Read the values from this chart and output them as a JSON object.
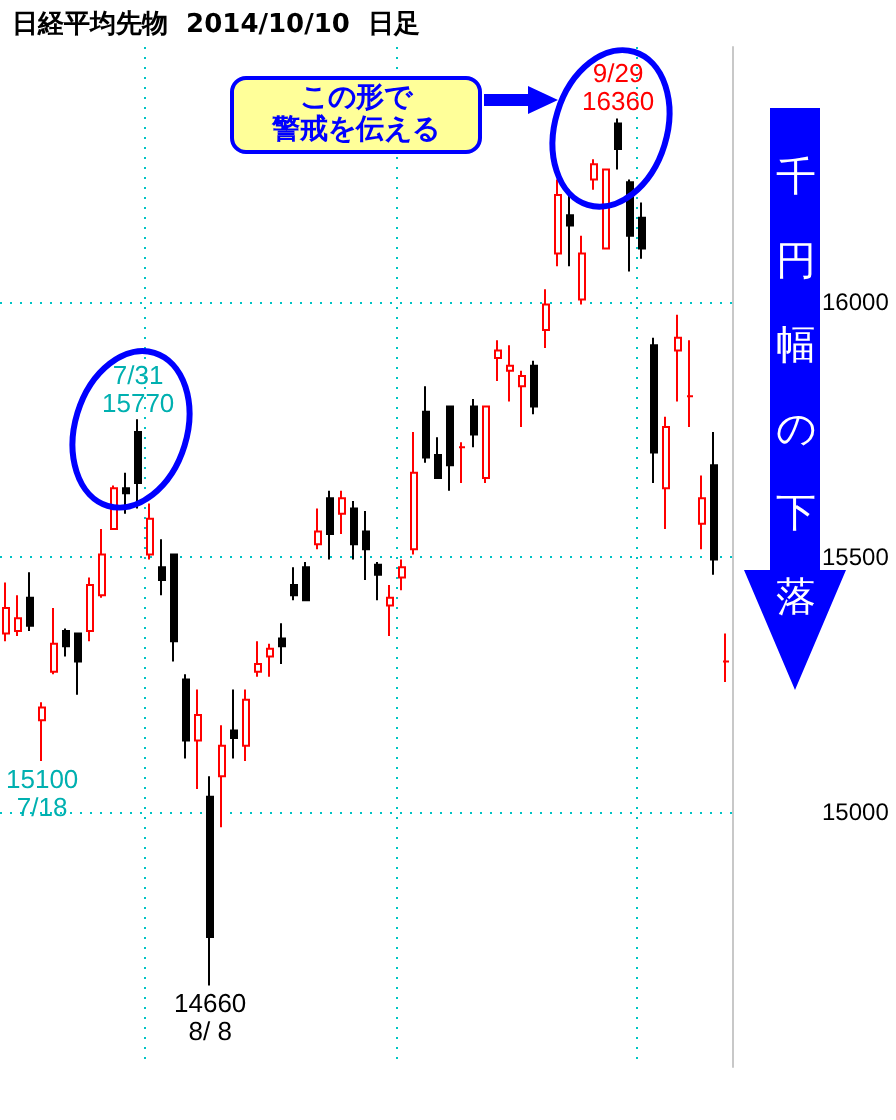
{
  "chart_data": {
    "type": "candlestick",
    "title": "日経平均先物  2014/10/10  日足",
    "categories": [
      null,
      null,
      null,
      null,
      null,
      null,
      null,
      null,
      null,
      null,
      null,
      null,
      null,
      null,
      null,
      null,
      null,
      null,
      null,
      null,
      null,
      null,
      null,
      null,
      null,
      null,
      null,
      null,
      null,
      null,
      null,
      null,
      null,
      null,
      null,
      null,
      null,
      null,
      null,
      null,
      null,
      null,
      null,
      null,
      null,
      null,
      null,
      null,
      null,
      null,
      null,
      null,
      null,
      null,
      null,
      null,
      null,
      null,
      null,
      null,
      null
    ],
    "ohlc": [
      [
        15350,
        15450,
        15335,
        15400
      ],
      [
        15355,
        15425,
        15345,
        15380
      ],
      [
        15420,
        15470,
        15355,
        15365
      ],
      [
        15180,
        15215,
        15100,
        15205
      ],
      [
        15275,
        15400,
        15270,
        15330
      ],
      [
        15355,
        15360,
        15305,
        15325
      ],
      [
        15350,
        15350,
        15230,
        15295
      ],
      [
        15355,
        15460,
        15335,
        15445
      ],
      [
        15425,
        15555,
        15420,
        15505
      ],
      [
        15555,
        15640,
        15555,
        15635
      ],
      [
        15635,
        15665,
        15585,
        15625
      ],
      [
        15745,
        15770,
        15595,
        15645
      ],
      [
        15505,
        15605,
        15495,
        15575
      ],
      [
        15480,
        15535,
        15425,
        15455
      ],
      [
        15505,
        15505,
        15295,
        15335
      ],
      [
        15260,
        15270,
        15105,
        15140
      ],
      [
        15140,
        15240,
        15045,
        15190
      ],
      [
        15030,
        15070,
        14660,
        14755
      ],
      [
        15070,
        15170,
        14970,
        15130
      ],
      [
        15160,
        15240,
        15105,
        15145
      ],
      [
        15130,
        15240,
        15100,
        15220
      ],
      [
        15275,
        15335,
        15265,
        15290
      ],
      [
        15305,
        15330,
        15265,
        15320
      ],
      [
        15340,
        15370,
        15290,
        15325
      ],
      [
        15445,
        15480,
        15415,
        15425
      ],
      [
        15480,
        15490,
        15415,
        15415
      ],
      [
        15525,
        15595,
        15515,
        15550
      ],
      [
        15615,
        15630,
        15495,
        15545
      ],
      [
        15585,
        15630,
        15545,
        15615
      ],
      [
        15595,
        15610,
        15495,
        15525
      ],
      [
        15550,
        15590,
        15455,
        15515
      ],
      [
        15485,
        15490,
        15415,
        15465
      ],
      [
        15405,
        15445,
        15345,
        15420
      ],
      [
        15460,
        15495,
        15435,
        15480
      ],
      [
        15515,
        15745,
        15505,
        15665
      ],
      [
        15785,
        15835,
        15685,
        15695
      ],
      [
        15700,
        15735,
        15655,
        15655
      ],
      [
        15795,
        15795,
        15630,
        15680
      ],
      [
        15715,
        15725,
        15645,
        15715
      ],
      [
        15795,
        15810,
        15715,
        15740
      ],
      [
        15655,
        15795,
        15645,
        15795
      ],
      [
        15890,
        15925,
        15845,
        15905
      ],
      [
        15865,
        15915,
        15805,
        15875
      ],
      [
        15835,
        15865,
        15755,
        15855
      ],
      [
        15875,
        15885,
        15780,
        15795
      ],
      [
        15945,
        16025,
        15910,
        15995
      ],
      [
        16095,
        16240,
        16070,
        16210
      ],
      [
        16170,
        16220,
        16070,
        16150
      ],
      [
        16005,
        16130,
        15995,
        16095
      ],
      [
        16240,
        16280,
        16220,
        16270
      ],
      [
        16105,
        16260,
        16105,
        16260
      ],
      [
        16350,
        16360,
        16260,
        16300
      ],
      [
        16235,
        16240,
        16060,
        16130
      ],
      [
        16165,
        16195,
        16085,
        16105
      ],
      [
        15915,
        15930,
        15645,
        15705
      ],
      [
        15635,
        15775,
        15555,
        15755
      ],
      [
        15905,
        15975,
        15805,
        15930
      ],
      [
        15815,
        15925,
        15755,
        15815
      ],
      [
        15565,
        15660,
        15515,
        15615
      ],
      [
        15680,
        15745,
        15465,
        15495
      ],
      [
        15295,
        15350,
        15255,
        15295
      ]
    ],
    "colors": [
      "#ff0000",
      "#ff0000",
      "#000000",
      "#ff0000",
      "#ff0000",
      "#000000",
      "#000000",
      "#ff0000",
      "#ff0000",
      "#ff0000",
      "#000000",
      "#000000",
      "#ff0000",
      "#000000",
      "#000000",
      "#000000",
      "#ff0000",
      "#000000",
      "#ff0000",
      "#000000",
      "#ff0000",
      "#ff0000",
      "#ff0000",
      "#000000",
      "#000000",
      "#000000",
      "#ff0000",
      "#000000",
      "#ff0000",
      "#000000",
      "#000000",
      "#000000",
      "#ff0000",
      "#ff0000",
      "#ff0000",
      "#000000",
      "#000000",
      "#000000",
      "#ff0000",
      "#000000",
      "#ff0000",
      "#ff0000",
      "#ff0000",
      "#ff0000",
      "#000000",
      "#ff0000",
      "#ff0000",
      "#000000",
      "#ff0000",
      "#ff0000",
      "#ff0000",
      "#000000",
      "#000000",
      "#000000",
      "#000000",
      "#ff0000",
      "#ff0000",
      "#ff0000",
      "#ff0000",
      "#000000",
      "#ff0000"
    ],
    "ylim": [
      14500,
      16500
    ],
    "yticks": [
      15000,
      15500,
      16000
    ],
    "grid": true,
    "tick_labels": "y",
    "annotations": [
      {
        "text": "7/31\n15770",
        "y": 15770
      },
      {
        "text": "9/29\n16360",
        "y": 16360
      },
      {
        "text": "15100\n7/18",
        "y": 15100
      },
      {
        "text": "14660\n8/ 8",
        "y": 14660
      },
      "この形で",
      "警戒を伝える",
      "千円幅の下落"
    ]
  }
}
